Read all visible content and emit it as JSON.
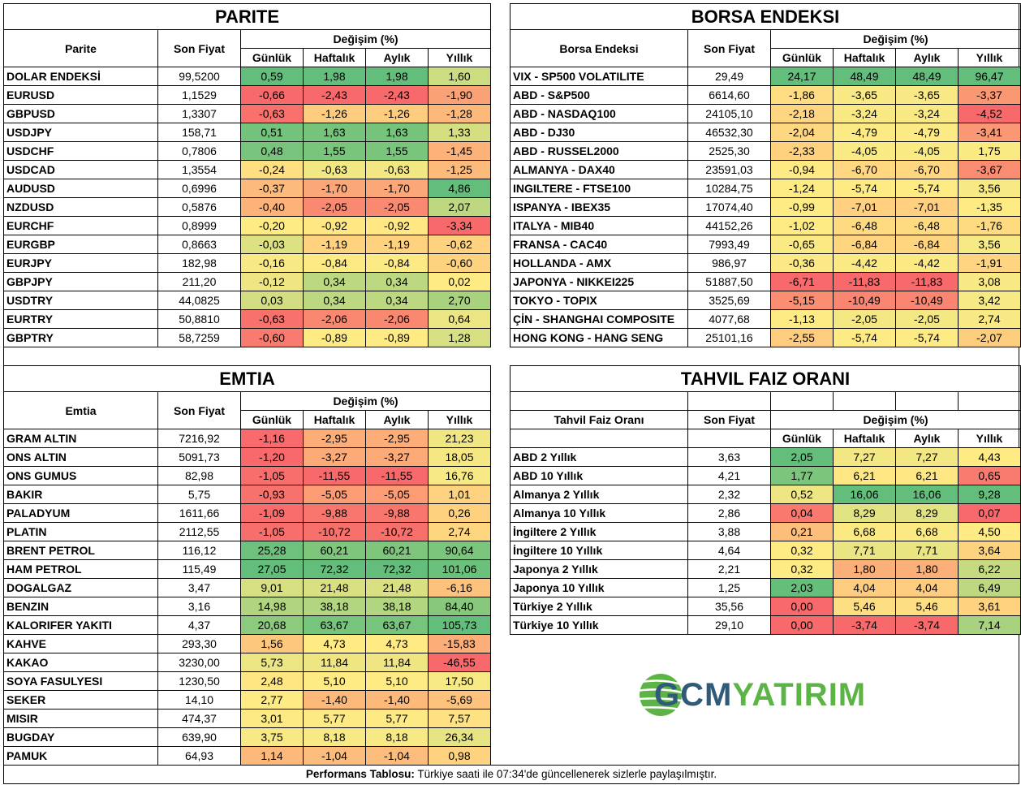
{
  "common": {
    "son_fiyat": "Son Fiyat",
    "degisim": "Değişim (%)",
    "periods": [
      "Günlük",
      "Haftalık",
      "Aylık",
      "Yıllık"
    ]
  },
  "colors": {
    "red": "#F8696B",
    "yellow": "#FFEB84",
    "green": "#63BE7B"
  },
  "parite": {
    "title": "PARITE",
    "col_label": "Parite",
    "rows": [
      [
        "DOLAR ENDEKSİ",
        "99,5200",
        "0,59",
        "1,98",
        "1,98",
        "1,60"
      ],
      [
        "EURUSD",
        "1,1529",
        "-0,66",
        "-2,43",
        "-2,43",
        "-1,90"
      ],
      [
        "GBPUSD",
        "1,3307",
        "-0,63",
        "-1,26",
        "-1,26",
        "-1,28"
      ],
      [
        "USDJPY",
        "158,71",
        "0,51",
        "1,63",
        "1,63",
        "1,33"
      ],
      [
        "USDCHF",
        "0,7806",
        "0,48",
        "1,55",
        "1,55",
        "-1,45"
      ],
      [
        "USDCAD",
        "1,3554",
        "-0,24",
        "-0,63",
        "-0,63",
        "-1,25"
      ],
      [
        "AUDUSD",
        "0,6996",
        "-0,37",
        "-1,70",
        "-1,70",
        "4,86"
      ],
      [
        "NZDUSD",
        "0,5876",
        "-0,40",
        "-2,05",
        "-2,05",
        "2,07"
      ],
      [
        "EURCHF",
        "0,8999",
        "-0,20",
        "-0,92",
        "-0,92",
        "-3,34"
      ],
      [
        "EURGBP",
        "0,8663",
        "-0,03",
        "-1,19",
        "-1,19",
        "-0,62"
      ],
      [
        "EURJPY",
        "182,98",
        "-0,16",
        "-0,84",
        "-0,84",
        "-0,60"
      ],
      [
        "GBPJPY",
        "211,20",
        "-0,12",
        "0,34",
        "0,34",
        "0,02"
      ],
      [
        "USDTRY",
        "44,0825",
        "0,03",
        "0,34",
        "0,34",
        "2,70"
      ],
      [
        "EURTRY",
        "50,8810",
        "-0,63",
        "-2,06",
        "-2,06",
        "0,64"
      ],
      [
        "GBPTRY",
        "58,7259",
        "-0,60",
        "-0,89",
        "-0,89",
        "1,28"
      ]
    ]
  },
  "borsa": {
    "title": "BORSA ENDEKSI",
    "col_label": "Borsa Endeksi",
    "rows": [
      [
        "VIX  - SP500 VOLATILITE",
        "29,49",
        "24,17",
        "48,49",
        "48,49",
        "96,47"
      ],
      [
        "ABD - S&P500",
        "6614,60",
        "-1,86",
        "-3,65",
        "-3,65",
        "-3,37"
      ],
      [
        "ABD - NASDAQ100",
        "24105,10",
        "-2,18",
        "-3,24",
        "-3,24",
        "-4,52"
      ],
      [
        "ABD - DJ30",
        "46532,30",
        "-2,04",
        "-4,79",
        "-4,79",
        "-3,41"
      ],
      [
        "ABD - RUSSEL2000",
        "2525,30",
        "-2,33",
        "-4,05",
        "-4,05",
        "1,75"
      ],
      [
        "ALMANYA - DAX40",
        "23591,03",
        "-0,94",
        "-6,70",
        "-6,70",
        "-3,67"
      ],
      [
        "INGILTERE - FTSE100",
        "10284,75",
        "-1,24",
        "-5,74",
        "-5,74",
        "3,56"
      ],
      [
        "ISPANYA - IBEX35",
        "17074,40",
        "-0,99",
        "-7,01",
        "-7,01",
        "-1,35"
      ],
      [
        "ITALYA - MIB40",
        "44152,26",
        "-1,02",
        "-6,48",
        "-6,48",
        "-1,76"
      ],
      [
        "FRANSA - CAC40",
        "7993,49",
        "-0,65",
        "-6,84",
        "-6,84",
        "3,56"
      ],
      [
        "HOLLANDA - AMX",
        "986,97",
        "-0,36",
        "-4,42",
        "-4,42",
        "-1,91"
      ],
      [
        "JAPONYA - NIKKEI225",
        "51887,50",
        "-6,71",
        "-11,83",
        "-11,83",
        "3,08"
      ],
      [
        "TOKYO - TOPIX",
        "3525,69",
        "-5,15",
        "-10,49",
        "-10,49",
        "3,42"
      ],
      [
        "ÇİN - SHANGHAI COMPOSITE",
        "4077,68",
        "-1,13",
        "-2,05",
        "-2,05",
        "2,74"
      ],
      [
        "HONG KONG - HANG SENG",
        "25101,16",
        "-2,55",
        "-5,74",
        "-5,74",
        "-2,07"
      ]
    ]
  },
  "emtia": {
    "title": "EMTIA",
    "col_label": "Emtia",
    "rows": [
      [
        "GRAM ALTIN",
        "7216,92",
        "-1,16",
        "-2,95",
        "-2,95",
        "21,23"
      ],
      [
        "ONS ALTIN",
        "5091,73",
        "-1,20",
        "-3,27",
        "-3,27",
        "18,05"
      ],
      [
        "ONS GUMUS",
        "82,98",
        "-1,05",
        "-11,55",
        "-11,55",
        "16,76"
      ],
      [
        "BAKIR",
        "5,75",
        "-0,93",
        "-5,05",
        "-5,05",
        "1,01"
      ],
      [
        "PALADYUM",
        "1611,66",
        "-1,09",
        "-9,88",
        "-9,88",
        "0,26"
      ],
      [
        "PLATIN",
        "2112,55",
        "-1,05",
        "-10,72",
        "-10,72",
        "2,74"
      ],
      [
        "BRENT PETROL",
        "116,12",
        "25,28",
        "60,21",
        "60,21",
        "90,64"
      ],
      [
        "HAM PETROL",
        "115,49",
        "27,05",
        "72,32",
        "72,32",
        "101,06"
      ],
      [
        "DOGALGAZ",
        "3,47",
        "9,01",
        "21,48",
        "21,48",
        "-6,16"
      ],
      [
        "BENZIN",
        "3,16",
        "14,98",
        "38,18",
        "38,18",
        "84,40"
      ],
      [
        "KALORIFER YAKITI",
        "4,37",
        "20,68",
        "63,67",
        "63,67",
        "105,73"
      ],
      [
        "KAHVE",
        "293,30",
        "1,56",
        "4,73",
        "4,73",
        "-15,83"
      ],
      [
        "KAKAO",
        "3230,00",
        "5,73",
        "11,84",
        "11,84",
        "-46,55"
      ],
      [
        "SOYA FASULYESI",
        "1230,50",
        "2,48",
        "5,10",
        "5,10",
        "17,50"
      ],
      [
        "SEKER",
        "14,10",
        "2,77",
        "-1,40",
        "-1,40",
        "-5,69"
      ],
      [
        "MISIR",
        "474,37",
        "3,01",
        "5,77",
        "5,77",
        "7,57"
      ],
      [
        "BUGDAY",
        "639,90",
        "3,75",
        "8,18",
        "8,18",
        "26,34"
      ],
      [
        "PAMUK",
        "64,93",
        "1,14",
        "-1,04",
        "-1,04",
        "0,98"
      ]
    ]
  },
  "tahvil": {
    "title": "TAHVIL FAIZ ORANI",
    "col_label": "Tahvil Faiz Oranı",
    "rows": [
      [
        "ABD 2 Yıllık",
        "3,63",
        "2,05",
        "7,27",
        "7,27",
        "4,43"
      ],
      [
        "ABD 10 Yıllık",
        "4,21",
        "1,77",
        "6,21",
        "6,21",
        "0,65"
      ],
      [
        "Almanya 2 Yıllık",
        "2,32",
        "0,52",
        "16,06",
        "16,06",
        "9,28"
      ],
      [
        "Almanya 10 Yıllık",
        "2,86",
        "0,04",
        "8,29",
        "8,29",
        "0,07"
      ],
      [
        "İngiltere 2 Yıllık",
        "3,88",
        "0,21",
        "6,68",
        "6,68",
        "4,50"
      ],
      [
        "İngiltere 10 Yıllık",
        "4,64",
        "0,32",
        "7,71",
        "7,71",
        "3,64"
      ],
      [
        "Japonya 2 Yıllık",
        "2,21",
        "0,32",
        "1,80",
        "1,80",
        "6,22"
      ],
      [
        "Japonya 10 Yıllık",
        "1,25",
        "2,03",
        "4,04",
        "4,04",
        "6,49"
      ],
      [
        "Türkiye 2 Yıllık",
        "35,56",
        "0,00",
        "5,46",
        "5,46",
        "3,61"
      ],
      [
        "Türkiye 10 Yıllık",
        "29,10",
        "0,00",
        "-3,74",
        "-3,74",
        "7,14"
      ]
    ]
  },
  "logo": {
    "gcm": "GCM",
    "yatirim": "YATIRIM"
  },
  "footer": {
    "label": "Performans Tablosu:",
    "text": " Türkiye saati ile 07:34'de güncellenerek sizlerle paylaşılmıştır."
  }
}
